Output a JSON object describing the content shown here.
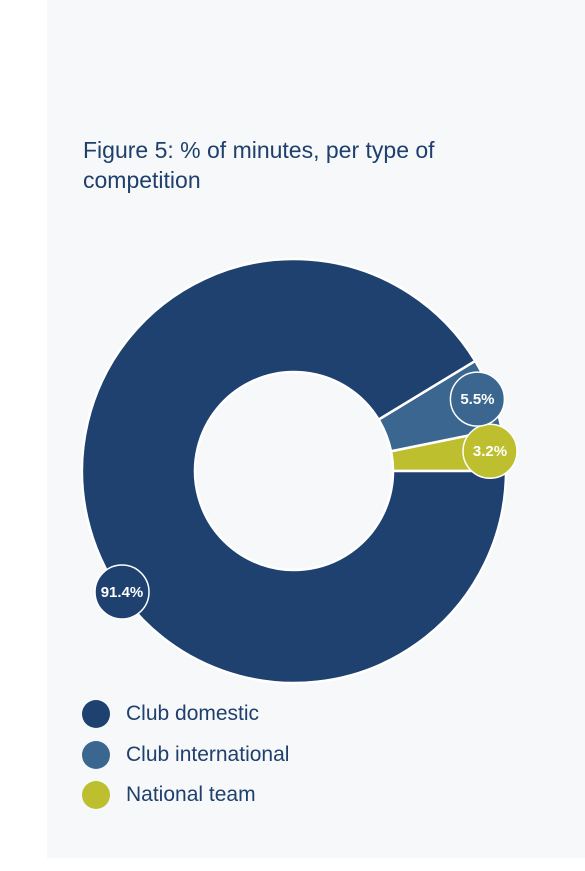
{
  "title": "Figure 5: % of minutes, per type of competition",
  "chart_data": {
    "type": "pie",
    "title": "Figure 5: % of minutes, per type of competition",
    "donut": true,
    "legend_position": "bottom-left",
    "series": [
      {
        "name": "Club domestic",
        "value": 91.4,
        "label": "91.4%",
        "color": "#1f4170"
      },
      {
        "name": "Club international",
        "value": 5.5,
        "label": "5.5%",
        "color": "#3a6690"
      },
      {
        "name": "National team",
        "value": 3.2,
        "label": "3.2%",
        "color": "#bdbf2f"
      }
    ]
  }
}
